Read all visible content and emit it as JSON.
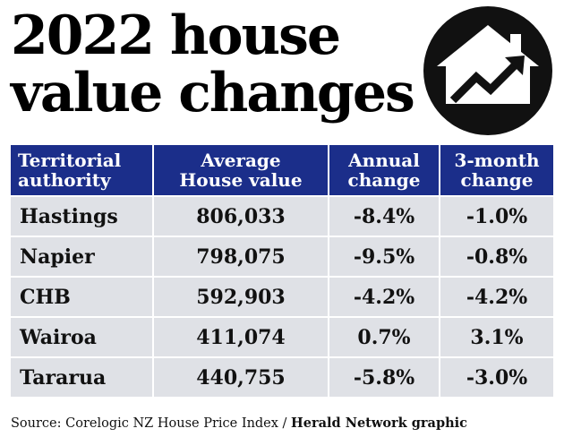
{
  "title": {
    "line1": "2022 house",
    "line2": "value changes"
  },
  "logo": {
    "icon": "house-rising-arrow-icon"
  },
  "chart_data": {
    "type": "table",
    "title": "2022 house value changes",
    "columns": [
      [
        "Territorial",
        "authority"
      ],
      [
        "Average",
        "House value"
      ],
      [
        "Annual",
        "change"
      ],
      [
        "3-month",
        "change"
      ]
    ],
    "rows": [
      [
        "Hastings",
        "806,033",
        "-8.4%",
        "-1.0%"
      ],
      [
        "Napier",
        "798,075",
        "-9.5%",
        "-0.8%"
      ],
      [
        "CHB",
        "592,903",
        "-4.2%",
        "-4.2%"
      ],
      [
        "Wairoa",
        "411,074",
        "0.7%",
        "3.1%"
      ],
      [
        "Tararua",
        "440,755",
        "-5.8%",
        "-3.0%"
      ]
    ]
  },
  "source": {
    "text": "Source: Corelogic NZ House Price Index /",
    "credit": "Herald Network graphic"
  },
  "colors": {
    "header_bg": "#1b2e8a",
    "cell_bg": "#dfe1e6",
    "text": "#111111",
    "logo_bg": "#111111"
  }
}
